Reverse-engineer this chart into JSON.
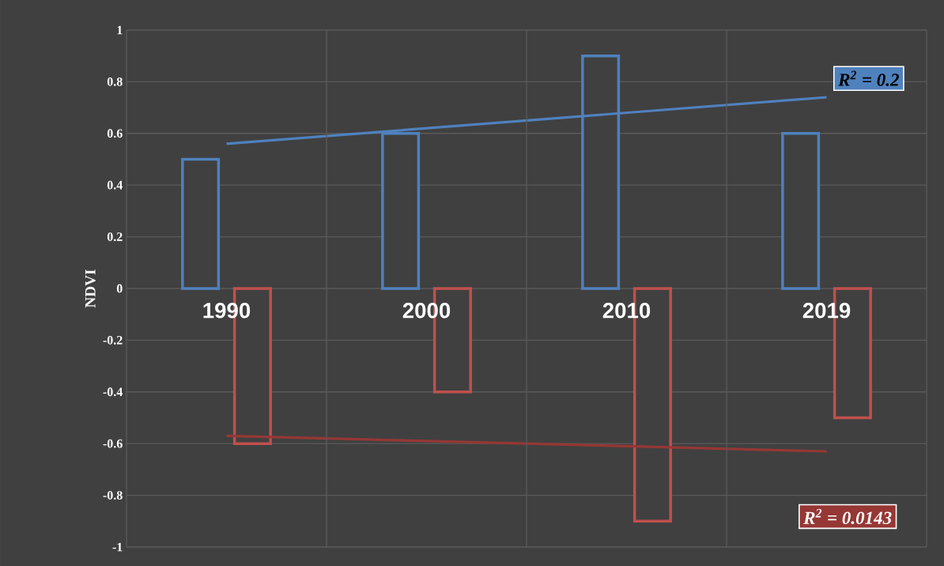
{
  "chart_data": {
    "type": "bar",
    "ylabel": "NDVI",
    "categories": [
      "1990",
      "2000",
      "2010",
      "2019"
    ],
    "series": [
      {
        "color": "#4f81bd",
        "values": [
          0.5,
          0.6,
          0.9,
          0.6
        ]
      },
      {
        "color": "#c0504d",
        "values": [
          -0.6,
          -0.4,
          -0.9,
          -0.5
        ]
      },
      {
        "type": "line",
        "name": "R$^{2}$ = 0.2",
        "color": "#4f81bd",
        "values": [
          0.56,
          0.62,
          0.68,
          0.74
        ]
      },
      {
        "type": "line",
        "name": "R$^{2}$ = 0.0143",
        "color": "#953735",
        "values": [
          -0.57,
          -0.59,
          -0.61,
          -0.63
        ]
      }
    ],
    "ylim": [
      -1,
      1
    ],
    "yticks": [
      -1,
      -0.8,
      -0.6,
      -0.4,
      -0.2,
      0,
      0.2,
      0.4,
      0.6,
      0.8,
      1
    ],
    "grid": true
  }
}
